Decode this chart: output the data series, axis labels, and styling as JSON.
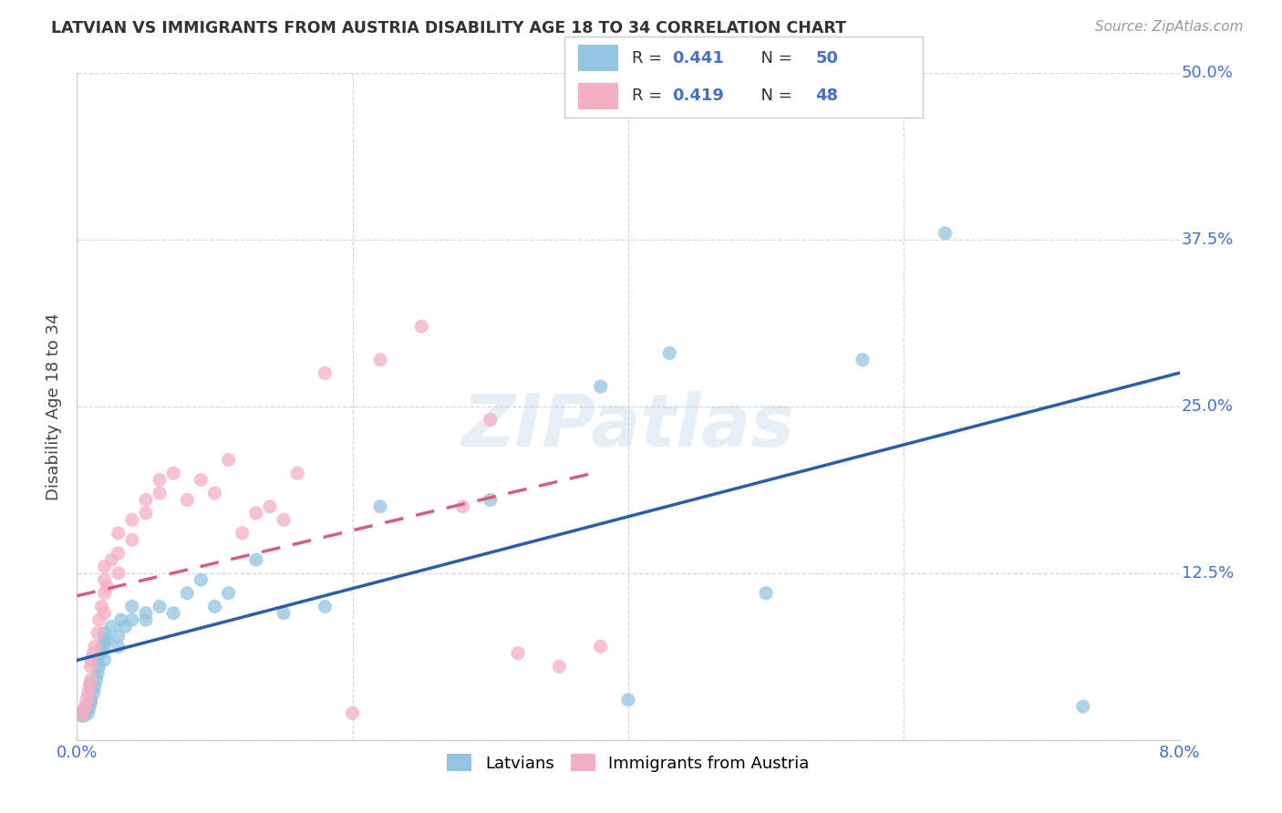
{
  "title": "LATVIAN VS IMMIGRANTS FROM AUSTRIA DISABILITY AGE 18 TO 34 CORRELATION CHART",
  "source": "Source: ZipAtlas.com",
  "ylabel": "Disability Age 18 to 34",
  "xlim": [
    0.0,
    0.08
  ],
  "ylim": [
    0.0,
    0.5
  ],
  "yticks": [
    0.0,
    0.125,
    0.25,
    0.375,
    0.5
  ],
  "ytick_labels": [
    "",
    "12.5%",
    "25.0%",
    "37.5%",
    "50.0%"
  ],
  "background_color": "#ffffff",
  "grid_color": "#d0d8e0",
  "watermark": "ZIPatlas",
  "latvian_color": "#93c4e0",
  "austria_color": "#f4afc4",
  "latvian_line_color": "#2b5ea7",
  "austria_line_color": "#d46080",
  "label_color": "#4472c4",
  "R_latvian": 0.441,
  "N_latvian": 50,
  "R_austria": 0.419,
  "N_austria": 48,
  "latvian_x": [
    0.0003,
    0.0005,
    0.0006,
    0.0007,
    0.0008,
    0.0009,
    0.001,
    0.001,
    0.001,
    0.001,
    0.0012,
    0.0013,
    0.0014,
    0.0015,
    0.0015,
    0.0016,
    0.0017,
    0.0018,
    0.002,
    0.002,
    0.002,
    0.002,
    0.0022,
    0.0025,
    0.003,
    0.003,
    0.0032,
    0.0035,
    0.004,
    0.004,
    0.005,
    0.005,
    0.006,
    0.007,
    0.008,
    0.009,
    0.01,
    0.011,
    0.013,
    0.015,
    0.018,
    0.022,
    0.03,
    0.038,
    0.04,
    0.043,
    0.05,
    0.057,
    0.063,
    0.073
  ],
  "latvian_y": [
    0.02,
    0.018,
    0.022,
    0.025,
    0.02,
    0.024,
    0.028,
    0.03,
    0.038,
    0.042,
    0.035,
    0.04,
    0.045,
    0.05,
    0.06,
    0.055,
    0.065,
    0.07,
    0.06,
    0.07,
    0.075,
    0.08,
    0.075,
    0.085,
    0.07,
    0.078,
    0.09,
    0.085,
    0.09,
    0.1,
    0.09,
    0.095,
    0.1,
    0.095,
    0.11,
    0.12,
    0.1,
    0.11,
    0.135,
    0.095,
    0.1,
    0.175,
    0.18,
    0.265,
    0.03,
    0.29,
    0.11,
    0.285,
    0.38,
    0.025
  ],
  "austria_x": [
    0.0003,
    0.0005,
    0.0006,
    0.0007,
    0.0008,
    0.0009,
    0.001,
    0.001,
    0.001,
    0.0012,
    0.0013,
    0.0015,
    0.0016,
    0.0018,
    0.002,
    0.002,
    0.002,
    0.002,
    0.0022,
    0.0025,
    0.003,
    0.003,
    0.003,
    0.004,
    0.004,
    0.005,
    0.005,
    0.006,
    0.006,
    0.007,
    0.008,
    0.009,
    0.01,
    0.011,
    0.012,
    0.013,
    0.014,
    0.015,
    0.016,
    0.018,
    0.02,
    0.022,
    0.025,
    0.028,
    0.03,
    0.032,
    0.035,
    0.038
  ],
  "austria_y": [
    0.018,
    0.022,
    0.025,
    0.03,
    0.035,
    0.04,
    0.045,
    0.055,
    0.06,
    0.065,
    0.07,
    0.08,
    0.09,
    0.1,
    0.095,
    0.11,
    0.12,
    0.13,
    0.115,
    0.135,
    0.125,
    0.14,
    0.155,
    0.15,
    0.165,
    0.17,
    0.18,
    0.185,
    0.195,
    0.2,
    0.18,
    0.195,
    0.185,
    0.21,
    0.155,
    0.17,
    0.175,
    0.165,
    0.2,
    0.275,
    0.02,
    0.285,
    0.31,
    0.175,
    0.24,
    0.065,
    0.055,
    0.07
  ]
}
